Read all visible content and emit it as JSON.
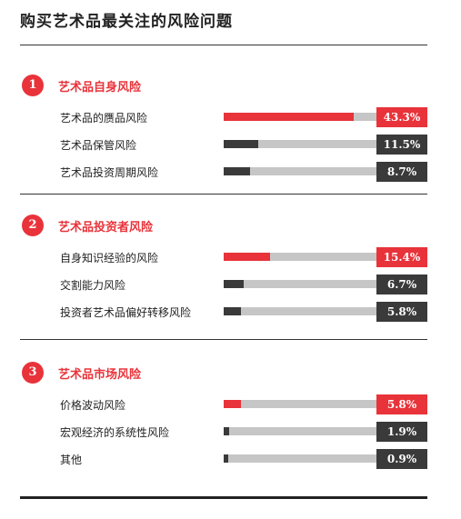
{
  "page_title": "购买艺术品最关注的风险问题",
  "colors": {
    "accent": "#e8333a",
    "dark": "#3a3a3a",
    "track": "#c6c6c6"
  },
  "chart_data": {
    "type": "bar",
    "orientation": "horizontal",
    "title": "购买艺术品最关注的风险问题",
    "unit": "%",
    "xlim": [
      0,
      100
    ],
    "groups": [
      {
        "number": "1",
        "name": "艺术品自身风险",
        "items": [
          {
            "label": "艺术品的赝品风险",
            "value": 43.3,
            "display": "43.3%",
            "highlight": true
          },
          {
            "label": "艺术品保管风险",
            "value": 11.5,
            "display": "11.5%",
            "highlight": false
          },
          {
            "label": "艺术品投资周期风险",
            "value": 8.7,
            "display": "8.7%",
            "highlight": false
          }
        ]
      },
      {
        "number": "2",
        "name": "艺术品投资者风险",
        "items": [
          {
            "label": "自身知识经验的风险",
            "value": 15.4,
            "display": "15.4%",
            "highlight": true
          },
          {
            "label": "交割能力风险",
            "value": 6.7,
            "display": "6.7%",
            "highlight": false
          },
          {
            "label": "投资者艺术品偏好转移风险",
            "value": 5.8,
            "display": "5.8%",
            "highlight": false
          }
        ]
      },
      {
        "number": "3",
        "name": "艺术品市场风险",
        "items": [
          {
            "label": "价格波动风险",
            "value": 5.8,
            "display": "5.8%",
            "highlight": true
          },
          {
            "label": "宏观经济的系统性风险",
            "value": 1.9,
            "display": "1.9%",
            "highlight": false
          },
          {
            "label": "其他",
            "value": 0.9,
            "display": "0.9%",
            "highlight": false
          }
        ]
      }
    ]
  }
}
